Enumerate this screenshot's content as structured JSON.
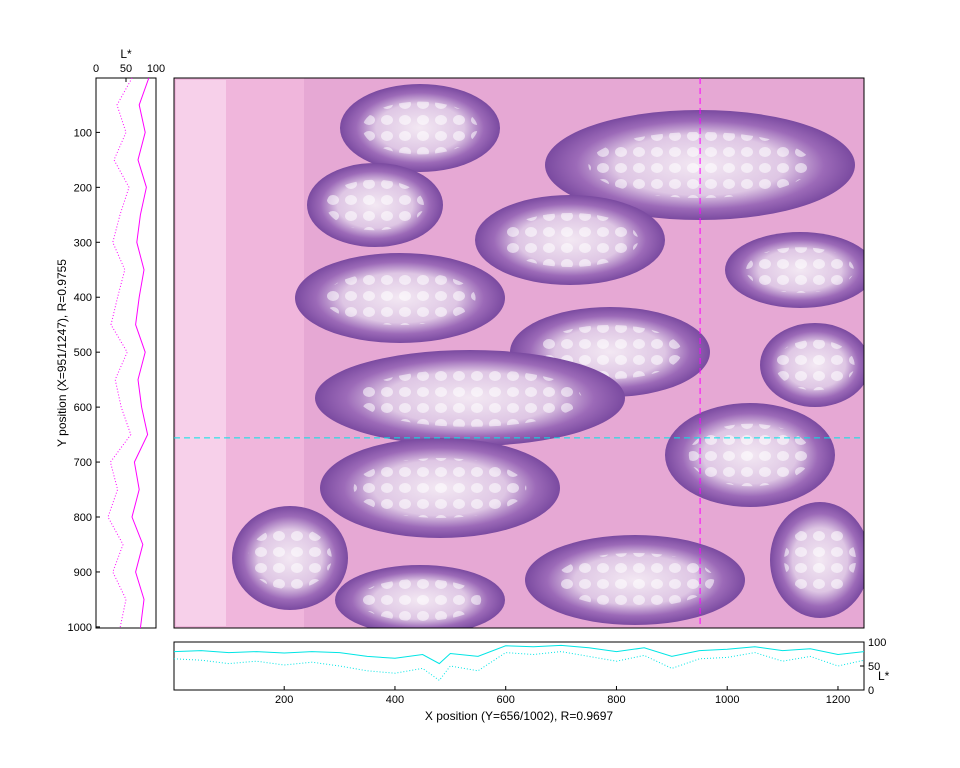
{
  "chart_data": [
    {
      "type": "image",
      "xlim": [
        1,
        1247
      ],
      "ylim": [
        1,
        1002
      ],
      "crosshair": {
        "x": 951,
        "y": 656
      },
      "colors": {
        "vertical_line": "#ff00ff",
        "horizontal_line": "#00e5e5",
        "frame": "#000000"
      }
    },
    {
      "type": "line",
      "xlabel": "X position (Y=656/1002), R=0.9697",
      "ylabel": "L*",
      "xticks": [
        "200",
        "400",
        "600",
        "800",
        "1000",
        "1200"
      ],
      "xtick_values": [
        200,
        400,
        600,
        800,
        1000,
        1200
      ],
      "yticks": [
        "0",
        "50",
        "100"
      ],
      "ytick_values": [
        0,
        50,
        100
      ],
      "xlim": [
        1,
        1247
      ],
      "ylim": [
        0,
        100
      ],
      "color": "#00e5e5",
      "series": [
        {
          "style": "solid",
          "x": [
            0,
            50,
            100,
            150,
            200,
            250,
            300,
            350,
            400,
            450,
            480,
            500,
            550,
            600,
            650,
            700,
            750,
            800,
            850,
            900,
            950,
            1000,
            1050,
            1100,
            1150,
            1200,
            1247
          ],
          "values": [
            80,
            82,
            78,
            80,
            77,
            80,
            78,
            70,
            66,
            74,
            55,
            76,
            70,
            92,
            90,
            93,
            88,
            80,
            88,
            70,
            82,
            85,
            90,
            82,
            86,
            74,
            80
          ]
        },
        {
          "style": "dotted",
          "x": [
            0,
            50,
            100,
            150,
            200,
            250,
            300,
            350,
            400,
            450,
            480,
            500,
            550,
            600,
            650,
            700,
            750,
            800,
            850,
            900,
            950,
            1000,
            1050,
            1100,
            1150,
            1200,
            1247
          ],
          "values": [
            65,
            62,
            55,
            60,
            52,
            58,
            50,
            40,
            35,
            45,
            20,
            50,
            40,
            78,
            74,
            80,
            70,
            60,
            72,
            45,
            65,
            68,
            78,
            60,
            70,
            50,
            62
          ]
        }
      ]
    },
    {
      "type": "line",
      "ylabel": "Y position (X=951/1247), R=0.9755",
      "xlabel": "L*",
      "xticks": [
        "0",
        "50",
        "100"
      ],
      "xtick_values": [
        0,
        50,
        100
      ],
      "yticks": [
        "100",
        "200",
        "300",
        "400",
        "500",
        "600",
        "700",
        "800",
        "900",
        "1000"
      ],
      "ytick_values": [
        100,
        200,
        300,
        400,
        500,
        600,
        700,
        800,
        900,
        1000
      ],
      "xlim": [
        0,
        100
      ],
      "ylim": [
        1,
        1002
      ],
      "color": "#ff00ff",
      "series": [
        {
          "style": "solid",
          "y": [
            0,
            50,
            100,
            150,
            200,
            250,
            300,
            350,
            400,
            450,
            500,
            550,
            600,
            650,
            700,
            750,
            800,
            850,
            900,
            950,
            1002
          ],
          "values": [
            88,
            72,
            82,
            70,
            84,
            74,
            68,
            80,
            72,
            66,
            82,
            70,
            76,
            86,
            64,
            72,
            60,
            78,
            66,
            80,
            74
          ]
        },
        {
          "style": "dotted",
          "y": [
            0,
            50,
            100,
            150,
            200,
            250,
            300,
            350,
            400,
            450,
            500,
            550,
            600,
            650,
            700,
            750,
            800,
            850,
            900,
            950,
            1002
          ],
          "values": [
            60,
            35,
            50,
            30,
            55,
            40,
            28,
            48,
            36,
            25,
            52,
            32,
            42,
            58,
            24,
            36,
            20,
            45,
            28,
            50,
            40
          ]
        }
      ]
    }
  ]
}
